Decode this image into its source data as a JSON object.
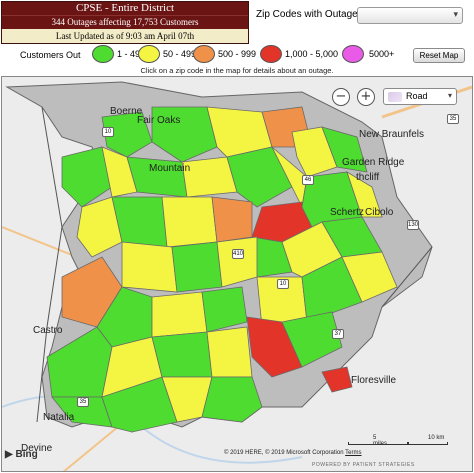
{
  "header": {
    "title": "CPSE - Entire District",
    "subtitle": "344 Outages affecting 17,753 Customers",
    "updated": "Last Updated as of 9:03 am April 07th"
  },
  "zip_selector": {
    "label": "Zip Codes with Outages",
    "selected": ""
  },
  "legend": {
    "label": "Customers Out",
    "items": [
      {
        "label": "1 - 49",
        "color": "#4ddc2f"
      },
      {
        "label": "50 - 499",
        "color": "#f4f442"
      },
      {
        "label": "500 - 999",
        "color": "#f0914a"
      },
      {
        "label": "1,000 - 5,000",
        "color": "#e3342a"
      },
      {
        "label": "5000+",
        "color": "#e95be6"
      }
    ]
  },
  "reset_button": "Reset Map",
  "instructions": "Click on a zip code in the map for details about an outage.",
  "map": {
    "zoom_out": "−",
    "zoom_in": "+",
    "map_type": "Road",
    "places": [
      "Boerne",
      "Fair Oaks",
      "Mountain",
      "New Braunfels",
      "Garden Ridge",
      "thcliff",
      "Schertz",
      "Cibolo",
      "Castro",
      "Natalia",
      "Devine",
      "Floresville"
    ],
    "highways": [
      "10",
      "35",
      "46",
      "130",
      "37",
      "35",
      "10",
      "410"
    ],
    "attribution": "© 2019 HERE, © 2019 Microsoft Corporation",
    "terms": "Terms",
    "scale_miles": "5 miles",
    "scale_km": "10 km",
    "bing": "Bing",
    "powered_by": "POWERED BY PATIENT STRATEGIES"
  }
}
